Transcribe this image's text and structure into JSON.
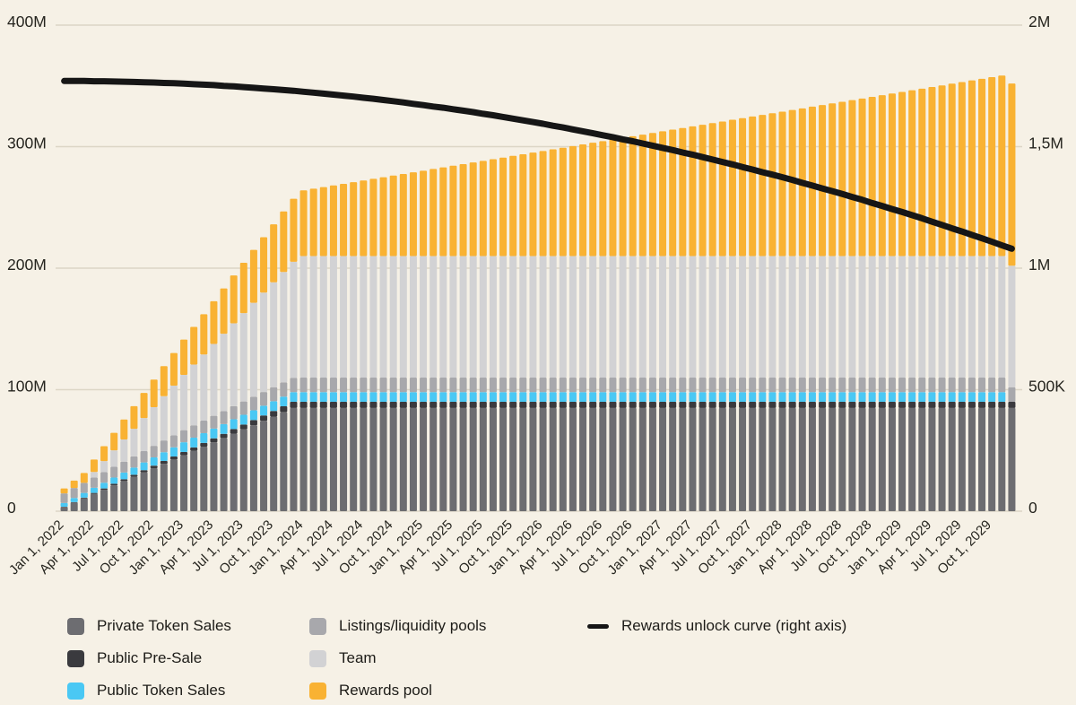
{
  "colors": {
    "background": "#f6f1e6",
    "grid": "#dcd6c6",
    "axis_text": "#26251f",
    "footer_strip": "#ffffff"
  },
  "chart_data": {
    "type": "bar",
    "subtype": "stacked-monthly-bars-with-right-axis-line",
    "bar_interval": "monthly",
    "months": 96,
    "x_tick_every": 3,
    "x_tick_labels": [
      "Jan 1, 2022",
      "Apr 1, 2022",
      "Jul 1, 2022",
      "Oct 1, 2022",
      "Jan 1, 2023",
      "Apr 1, 2023",
      "Jul 1, 2023",
      "Oct 1, 2023",
      "Jan 1, 2024",
      "Apr 1, 2024",
      "Jul 1, 2024",
      "Oct 1, 2024",
      "Jan 1, 2025",
      "Apr 1, 2025",
      "Jul 1, 2025",
      "Oct 1, 2025",
      "Jan 1, 2026",
      "Apr 1, 2026",
      "Jul 1, 2026",
      "Oct 1, 2026",
      "Jan 1, 2027",
      "Apr 1, 2027",
      "Jul 1, 2027",
      "Oct 1, 2027",
      "Jan 1, 2028",
      "Apr 1, 2028",
      "Jul 1, 2028",
      "Oct 1, 2028",
      "Jan 1, 2029",
      "Apr 1, 2029",
      "Jul 1, 2029",
      "Oct 1, 2029"
    ],
    "left_axis": {
      "max": 400,
      "unit": "tokens (millions)",
      "tick_values": [
        0,
        100,
        200,
        300,
        400
      ],
      "tick_labels": [
        "0",
        "100M",
        "200M",
        "300M",
        "400M"
      ]
    },
    "right_axis": {
      "max": 2,
      "unit": "rewards per period (millions)",
      "tick_values": [
        0,
        0.5,
        1,
        1.5,
        2
      ],
      "tick_labels": [
        "0",
        "500K",
        "1M",
        "1,5M",
        "2M"
      ]
    },
    "series": [
      {
        "name": "Private Token Sales",
        "color": "#6d6d71",
        "values": [
          3.5,
          7.1,
          10.6,
          14.2,
          17.7,
          21.3,
          24.8,
          28.3,
          31.9,
          35.4,
          39,
          42.5,
          46,
          49.6,
          53.1,
          56.7,
          60.2,
          63.8,
          67.3,
          70.8,
          74.4,
          77.9,
          81.5,
          85,
          85,
          85,
          85,
          85,
          85,
          85,
          85,
          85,
          85,
          85,
          85,
          85,
          85,
          85,
          85,
          85,
          85,
          85,
          85,
          85,
          85,
          85,
          85,
          85,
          85,
          85,
          85,
          85,
          85,
          85,
          85,
          85,
          85,
          85,
          85,
          85,
          85,
          85,
          85,
          85,
          85,
          85,
          85,
          85,
          85,
          85,
          85,
          85,
          85,
          85,
          85,
          85,
          85,
          85,
          85,
          85,
          85,
          85,
          85,
          85,
          85,
          85,
          85,
          85,
          85,
          85,
          85,
          85,
          85,
          85,
          85,
          85
        ]
      },
      {
        "name": "Public Pre-Sale",
        "color": "#3a3a3e",
        "values": [
          0.2,
          0.4,
          0.6,
          0.8,
          1,
          1.3,
          1.5,
          1.7,
          1.9,
          2.1,
          2.3,
          2.5,
          2.7,
          2.9,
          3.1,
          3.3,
          3.5,
          3.8,
          4,
          4.2,
          4.4,
          4.6,
          4.8,
          5,
          5,
          5,
          5,
          5,
          5,
          5,
          5,
          5,
          5,
          5,
          5,
          5,
          5,
          5,
          5,
          5,
          5,
          5,
          5,
          5,
          5,
          5,
          5,
          5,
          5,
          5,
          5,
          5,
          5,
          5,
          5,
          5,
          5,
          5,
          5,
          5,
          5,
          5,
          5,
          5,
          5,
          5,
          5,
          5,
          5,
          5,
          5,
          5,
          5,
          5,
          5,
          5,
          5,
          5,
          5,
          5,
          5,
          5,
          5,
          5,
          5,
          5,
          5,
          5,
          5,
          5,
          5,
          5,
          5,
          5,
          5,
          5
        ]
      },
      {
        "name": "Public Token Sales",
        "color": "#4ac8f4",
        "values": [
          3,
          3.4,
          3.8,
          4.3,
          4.7,
          5.1,
          5.5,
          5.9,
          6.3,
          6.8,
          7.2,
          7.6,
          8,
          8,
          8,
          8,
          8,
          8,
          8,
          8,
          8,
          8,
          8,
          8,
          8,
          8,
          8,
          8,
          8,
          8,
          8,
          8,
          8,
          8,
          8,
          8,
          8,
          8,
          8,
          8,
          8,
          8,
          8,
          8,
          8,
          8,
          8,
          8,
          8,
          8,
          8,
          8,
          8,
          8,
          8,
          8,
          8,
          8,
          8,
          8,
          8,
          8,
          8,
          8,
          8,
          8,
          8,
          8,
          8,
          8,
          8,
          8,
          8,
          8,
          8,
          8,
          8,
          8,
          8,
          8,
          8,
          8,
          8,
          8,
          8,
          8,
          8,
          8,
          8,
          8,
          8,
          8,
          8,
          8,
          8
        ]
      },
      {
        "name": "Listings/liquidity pools",
        "color": "#a8a8ac",
        "values": [
          8,
          8.2,
          8.3,
          8.5,
          8.7,
          8.8,
          9,
          9.2,
          9.3,
          9.5,
          9.7,
          9.8,
          10,
          10.2,
          10.3,
          10.5,
          10.7,
          10.8,
          11,
          11.2,
          11.3,
          11.5,
          11.7,
          11.8,
          12,
          12,
          12,
          12,
          12,
          12,
          12,
          12,
          12,
          12,
          12,
          12,
          12,
          12,
          12,
          12,
          12,
          12,
          12,
          12,
          12,
          12,
          12,
          12,
          12,
          12,
          12,
          12,
          12,
          12,
          12,
          12,
          12,
          12,
          12,
          12,
          12,
          12,
          12,
          12,
          12,
          12,
          12,
          12,
          12,
          12,
          12,
          12,
          12,
          12,
          12,
          12,
          12,
          12,
          12,
          12,
          12,
          12,
          12,
          12,
          12,
          12,
          12,
          12,
          12,
          12,
          12,
          12,
          12,
          12,
          12,
          12
        ]
      },
      {
        "name": "Team",
        "color": "#d2d2d4",
        "values": [
          0,
          0,
          0,
          4.5,
          9.1,
          13.6,
          18.2,
          22.7,
          27.3,
          31.8,
          36.4,
          40.9,
          45.5,
          50,
          54.5,
          59.1,
          63.6,
          68.2,
          72.7,
          77.3,
          81.8,
          86.4,
          90.9,
          95.5,
          100,
          100,
          100,
          100,
          100,
          100,
          100,
          100,
          100,
          100,
          100,
          100,
          100,
          100,
          100,
          100,
          100,
          100,
          100,
          100,
          100,
          100,
          100,
          100,
          100,
          100,
          100,
          100,
          100,
          100,
          100,
          100,
          100,
          100,
          100,
          100,
          100,
          100,
          100,
          100,
          100,
          100,
          100,
          100,
          100,
          100,
          100,
          100,
          100,
          100,
          100,
          100,
          100,
          100,
          100,
          100,
          100,
          100,
          100,
          100,
          100,
          100,
          100,
          100,
          100,
          100,
          100,
          100,
          100,
          100,
          100,
          100
        ]
      },
      {
        "name": "Rewards pool",
        "color": "#f9b233",
        "values": [
          4,
          6.1,
          8.2,
          10.2,
          12.3,
          14.4,
          16.5,
          18.6,
          20.6,
          22.7,
          24.8,
          26.9,
          29,
          31,
          33.1,
          35.2,
          37.3,
          39.4,
          41.4,
          43.5,
          45.6,
          47.7,
          49.8,
          51.8,
          54,
          55.4,
          56.7,
          58.1,
          59.4,
          60.8,
          62.1,
          63.5,
          64.8,
          66.2,
          67.5,
          68.9,
          70.2,
          71.6,
          72.9,
          74.3,
          75.6,
          77,
          78.3,
          79.7,
          81,
          82.4,
          83.7,
          85.1,
          86.4,
          87.8,
          89.1,
          90.5,
          91.8,
          93.2,
          94.5,
          95.9,
          97.2,
          98.6,
          99.9,
          101.3,
          102.6,
          104,
          105.3,
          106.7,
          108,
          109.4,
          110.7,
          112.1,
          113.4,
          114.8,
          116.1,
          117.5,
          118.8,
          120.2,
          121.5,
          122.9,
          124.2,
          125.6,
          126.9,
          128.3,
          129.6,
          131,
          132.3,
          133.7,
          135,
          136.4,
          137.7,
          139.1,
          140.4,
          141.8,
          143.1,
          144.5,
          145.8,
          147.2,
          148.5,
          149.9
        ]
      }
    ],
    "line_series": {
      "name": "Rewards unlock curve (right axis)",
      "color": "#161616",
      "axis": "right",
      "values": [
        1.77,
        1.77,
        1.77,
        1.769,
        1.769,
        1.768,
        1.767,
        1.766,
        1.765,
        1.764,
        1.762,
        1.761,
        1.759,
        1.757,
        1.755,
        1.753,
        1.75,
        1.748,
        1.745,
        1.742,
        1.739,
        1.736,
        1.733,
        1.73,
        1.726,
        1.722,
        1.718,
        1.714,
        1.71,
        1.706,
        1.701,
        1.697,
        1.692,
        1.687,
        1.682,
        1.676,
        1.671,
        1.665,
        1.66,
        1.654,
        1.648,
        1.642,
        1.635,
        1.629,
        1.622,
        1.615,
        1.608,
        1.601,
        1.594,
        1.586,
        1.579,
        1.571,
        1.563,
        1.555,
        1.547,
        1.539,
        1.53,
        1.522,
        1.513,
        1.504,
        1.495,
        1.486,
        1.476,
        1.467,
        1.457,
        1.447,
        1.437,
        1.427,
        1.416,
        1.406,
        1.395,
        1.385,
        1.374,
        1.363,
        1.351,
        1.34,
        1.328,
        1.317,
        1.305,
        1.293,
        1.281,
        1.268,
        1.256,
        1.243,
        1.231,
        1.218,
        1.205,
        1.191,
        1.178,
        1.164,
        1.151,
        1.137,
        1.123,
        1.109,
        1.094,
        1.08
      ]
    }
  },
  "legend": {
    "items": [
      {
        "label": "Private Token Sales",
        "color": "#6d6d71",
        "shape": "square"
      },
      {
        "label": "Public Pre-Sale",
        "color": "#3a3a3e",
        "shape": "square"
      },
      {
        "label": "Public Token Sales",
        "color": "#4ac8f4",
        "shape": "square"
      },
      {
        "label": "Listings/liquidity pools",
        "color": "#a8a8ac",
        "shape": "square"
      },
      {
        "label": "Team",
        "color": "#d2d2d4",
        "shape": "square"
      },
      {
        "label": "Rewards pool",
        "color": "#f9b233",
        "shape": "square"
      },
      {
        "label": "Rewards unlock curve (right axis)",
        "color": "#161616",
        "shape": "line"
      }
    ]
  }
}
